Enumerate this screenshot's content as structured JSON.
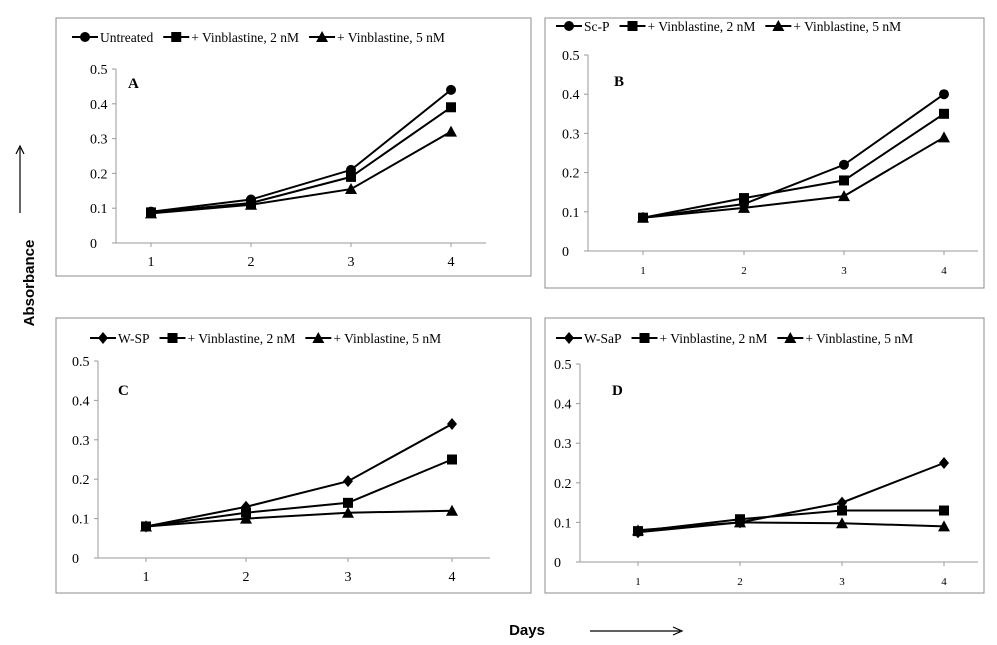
{
  "figure": {
    "y_axis_label": "Absorbance",
    "x_axis_label": "Days",
    "ink_color": "#000000",
    "frame_color": "#8c8c8c"
  },
  "chart_data": [
    {
      "type": "line",
      "panel_label": "A",
      "x": [
        1,
        2,
        3,
        4
      ],
      "xticks": [
        "1",
        "2",
        "3",
        "4"
      ],
      "ylim": [
        0,
        0.5
      ],
      "yticks": [
        "0",
        "0.1",
        "0.2",
        "0.3",
        "0.4",
        "0.5"
      ],
      "grid": false,
      "legend_position": "top",
      "series": [
        {
          "name": "Untreated",
          "marker": "circle",
          "values": [
            0.09,
            0.125,
            0.21,
            0.44
          ]
        },
        {
          "name": "+ Vinblastine, 2 nM",
          "marker": "square",
          "values": [
            0.088,
            0.115,
            0.19,
            0.39
          ]
        },
        {
          "name": "+ Vinblastine, 5 nM",
          "marker": "triangle",
          "values": [
            0.085,
            0.11,
            0.155,
            0.32
          ]
        }
      ]
    },
    {
      "type": "line",
      "panel_label": "B",
      "x": [
        1,
        2,
        3,
        4
      ],
      "xticks": [
        "1",
        "2",
        "3",
        "4"
      ],
      "ylim": [
        0,
        0.5
      ],
      "yticks": [
        "0",
        "0.1",
        "0.2",
        "0.3",
        "0.4",
        "0.5"
      ],
      "grid": false,
      "legend_position": "top",
      "series": [
        {
          "name": "Sc-P",
          "marker": "circle",
          "values": [
            0.085,
            0.12,
            0.22,
            0.4
          ]
        },
        {
          "name": "+ Vinblastine, 2 nM",
          "marker": "square",
          "values": [
            0.085,
            0.135,
            0.18,
            0.35
          ]
        },
        {
          "name": "+ Vinblastine, 5 nM",
          "marker": "triangle",
          "values": [
            0.085,
            0.11,
            0.14,
            0.29
          ]
        }
      ]
    },
    {
      "type": "line",
      "panel_label": "C",
      "x": [
        1,
        2,
        3,
        4
      ],
      "xticks": [
        "1",
        "2",
        "3",
        "4"
      ],
      "ylim": [
        0,
        0.5
      ],
      "yticks": [
        "0",
        "0.1",
        "0.2",
        "0.3",
        "0.4",
        "0.5"
      ],
      "grid": false,
      "legend_position": "top",
      "series": [
        {
          "name": "W-SP",
          "marker": "diamond",
          "values": [
            0.08,
            0.13,
            0.195,
            0.34
          ]
        },
        {
          "name": "+ Vinblastine, 2 nM",
          "marker": "square",
          "values": [
            0.08,
            0.115,
            0.14,
            0.25
          ]
        },
        {
          "name": "+ Vinblastine, 5 nM",
          "marker": "triangle",
          "values": [
            0.08,
            0.1,
            0.115,
            0.12
          ]
        }
      ]
    },
    {
      "type": "line",
      "panel_label": "D",
      "x": [
        1,
        2,
        3,
        4
      ],
      "xticks": [
        "1",
        "2",
        "3",
        "4"
      ],
      "ylim": [
        0,
        0.5
      ],
      "yticks": [
        "0",
        "0.1",
        "0.2",
        "0.3",
        "0.4",
        "0.5"
      ],
      "grid": false,
      "legend_position": "top",
      "series": [
        {
          "name": "W-SaP",
          "marker": "diamond",
          "values": [
            0.075,
            0.1,
            0.15,
            0.25
          ]
        },
        {
          "name": "+ Vinblastine, 2 nM",
          "marker": "square",
          "values": [
            0.078,
            0.108,
            0.13,
            0.13
          ]
        },
        {
          "name": "+ Vinblastine, 5 nM",
          "marker": "triangle",
          "values": [
            0.08,
            0.1,
            0.098,
            0.09
          ]
        }
      ]
    }
  ]
}
